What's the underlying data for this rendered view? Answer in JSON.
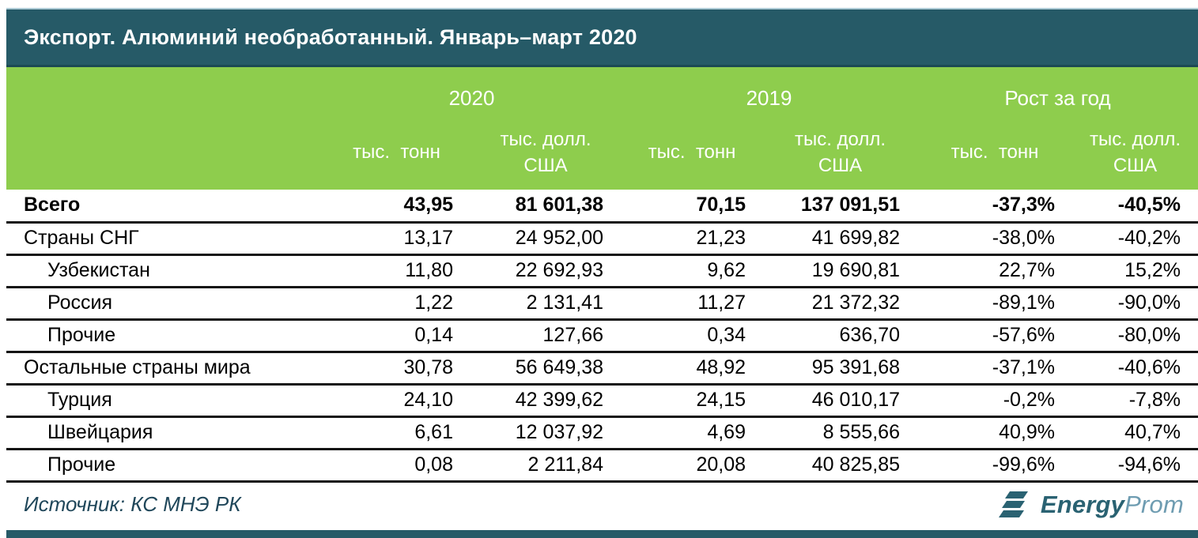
{
  "chart_data": {
    "type": "table",
    "title": "Экспорт. Алюминий необработанный. Январь–март 2020",
    "column_groups": [
      {
        "label": "2020",
        "span": 2
      },
      {
        "label": "2019",
        "span": 2
      },
      {
        "label": "Рост за год",
        "span": 2
      }
    ],
    "columns": [
      "тыс. тонн",
      "тыс. долл. США",
      "тыс. тонн",
      "тыс. долл. США",
      "тыс. тонн",
      "тыс. долл. США"
    ],
    "rows": [
      {
        "name": "Всего",
        "indent": false,
        "bold": true,
        "values": [
          "43,95",
          "81 601,38",
          "70,15",
          "137 091,51",
          "-37,3%",
          "-40,5%"
        ]
      },
      {
        "name": "Страны СНГ",
        "indent": false,
        "bold": false,
        "values": [
          "13,17",
          "24 952,00",
          "21,23",
          "41 699,82",
          "-38,0%",
          "-40,2%"
        ]
      },
      {
        "name": "Узбекистан",
        "indent": true,
        "bold": false,
        "values": [
          "11,80",
          "22 692,93",
          "9,62",
          "19 690,81",
          "22,7%",
          "15,2%"
        ]
      },
      {
        "name": "Россия",
        "indent": true,
        "bold": false,
        "values": [
          "1,22",
          "2 131,41",
          "11,27",
          "21 372,32",
          "-89,1%",
          "-90,0%"
        ]
      },
      {
        "name": "Прочие",
        "indent": true,
        "bold": false,
        "values": [
          "0,14",
          "127,66",
          "0,34",
          "636,70",
          "-57,6%",
          "-80,0%"
        ]
      },
      {
        "name": "Остальные страны мира",
        "indent": false,
        "bold": false,
        "values": [
          "30,78",
          "56 649,38",
          "48,92",
          "95 391,68",
          "-37,1%",
          "-40,6%"
        ]
      },
      {
        "name": "Турция",
        "indent": true,
        "bold": false,
        "values": [
          "24,10",
          "42 399,62",
          "24,15",
          "46 010,17",
          "-0,2%",
          "-7,8%"
        ]
      },
      {
        "name": "Швейцария",
        "indent": true,
        "bold": false,
        "values": [
          "6,61",
          "12 037,92",
          "4,69",
          "8 555,66",
          "40,9%",
          "40,7%"
        ]
      },
      {
        "name": "Прочие",
        "indent": true,
        "bold": false,
        "values": [
          "0,08",
          "2 211,84",
          "20,08",
          "40 825,85",
          "-99,6%",
          "-94,6%"
        ]
      }
    ]
  },
  "header_display": {
    "columns": [
      "тыс.  тонн",
      "тыс. долл.\nСША",
      "тыс.  тонн",
      "тыс. долл.\nСША",
      "тыс.  тонн",
      "тыс. долл.\nСША"
    ]
  },
  "footer": {
    "source": "Источник: КС МНЭ РК",
    "logo_bold": "Energy",
    "logo_light": "Prom"
  },
  "colors": {
    "header_teal": "#265a67",
    "header_green": "#8ecd4d",
    "row_border": "#141414",
    "source_text": "#20475a",
    "logo_dark_teal": "#2a6272",
    "logo_light_teal": "#6e9cb1"
  }
}
